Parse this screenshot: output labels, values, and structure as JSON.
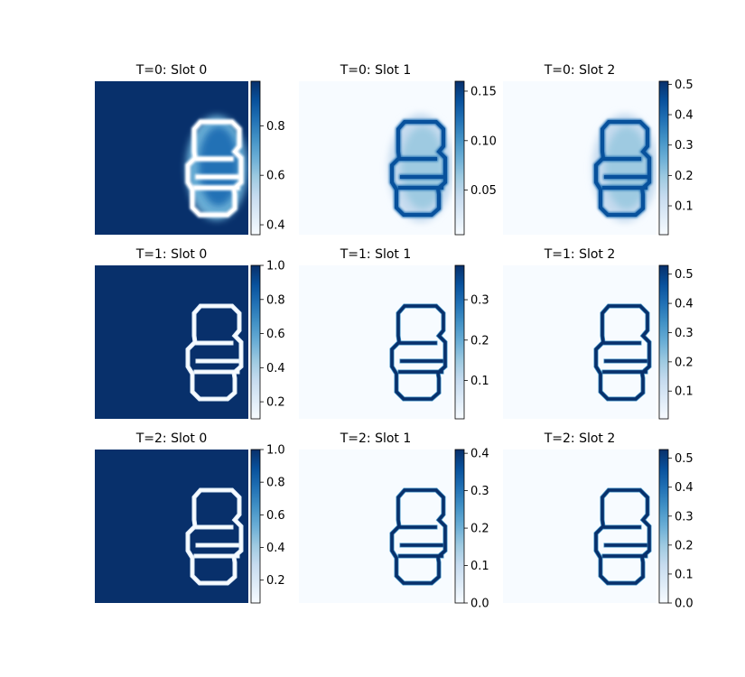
{
  "figure": {
    "background": "#ffffff"
  },
  "colormap": {
    "name": "Blues",
    "stops": [
      "#f7fbff",
      "#deebf7",
      "#c6dbef",
      "#9ecae1",
      "#6baed6",
      "#4292c6",
      "#2171b5",
      "#08519c",
      "#08306b"
    ]
  },
  "chart_data": [
    {
      "type": "heatmap",
      "title": "T=0: Slot 0",
      "colorbar": {
        "range": [
          0.36,
          0.98
        ],
        "ticks": [
          "0.4",
          "0.6",
          "0.8"
        ],
        "tick_values": [
          0.4,
          0.6,
          0.8
        ]
      },
      "pattern": "background",
      "blur": true
    },
    {
      "type": "heatmap",
      "title": "T=0: Slot 1",
      "colorbar": {
        "range": [
          0.005,
          0.16
        ],
        "ticks": [
          "0.05",
          "0.10",
          "0.15"
        ],
        "tick_values": [
          0.05,
          0.1,
          0.15
        ]
      },
      "pattern": "object",
      "blur": true
    },
    {
      "type": "heatmap",
      "title": "T=0: Slot 2",
      "colorbar": {
        "range": [
          0.005,
          0.51
        ],
        "ticks": [
          "0.1",
          "0.2",
          "0.3",
          "0.4",
          "0.5"
        ],
        "tick_values": [
          0.1,
          0.2,
          0.3,
          0.4,
          0.5
        ]
      },
      "pattern": "object",
      "blur": true
    },
    {
      "type": "heatmap",
      "title": "T=1: Slot 0",
      "colorbar": {
        "range": [
          0.1,
          1.0
        ],
        "ticks": [
          "0.2",
          "0.4",
          "0.6",
          "0.8",
          "1.0"
        ],
        "tick_values": [
          0.2,
          0.4,
          0.6,
          0.8,
          1.0
        ]
      },
      "pattern": "background",
      "blur": false
    },
    {
      "type": "heatmap",
      "title": "T=1: Slot 1",
      "colorbar": {
        "range": [
          0.005,
          0.385
        ],
        "ticks": [
          "0.1",
          "0.2",
          "0.3"
        ],
        "tick_values": [
          0.1,
          0.2,
          0.3
        ]
      },
      "pattern": "object",
      "blur": false
    },
    {
      "type": "heatmap",
      "title": "T=1: Slot 2",
      "colorbar": {
        "range": [
          0.005,
          0.53
        ],
        "ticks": [
          "0.1",
          "0.2",
          "0.3",
          "0.4",
          "0.5"
        ],
        "tick_values": [
          0.1,
          0.2,
          0.3,
          0.4,
          0.5
        ]
      },
      "pattern": "object",
      "blur": false
    },
    {
      "type": "heatmap",
      "title": "T=2: Slot 0",
      "colorbar": {
        "range": [
          0.06,
          1.0
        ],
        "ticks": [
          "0.2",
          "0.4",
          "0.6",
          "0.8",
          "1.0"
        ],
        "tick_values": [
          0.2,
          0.4,
          0.6,
          0.8,
          1.0
        ]
      },
      "pattern": "background",
      "blur": false
    },
    {
      "type": "heatmap",
      "title": "T=2: Slot 1",
      "colorbar": {
        "range": [
          0.0,
          0.41
        ],
        "ticks": [
          "0.0",
          "0.1",
          "0.2",
          "0.3",
          "0.4"
        ],
        "tick_values": [
          0.0,
          0.1,
          0.2,
          0.3,
          0.4
        ]
      },
      "pattern": "object",
      "blur": false
    },
    {
      "type": "heatmap",
      "title": "T=2: Slot 2",
      "colorbar": {
        "range": [
          0.0,
          0.53
        ],
        "ticks": [
          "0.0",
          "0.1",
          "0.2",
          "0.3",
          "0.4",
          "0.5"
        ],
        "tick_values": [
          0.0,
          0.1,
          0.2,
          0.3,
          0.4,
          0.5
        ]
      },
      "pattern": "object",
      "blur": false
    }
  ]
}
